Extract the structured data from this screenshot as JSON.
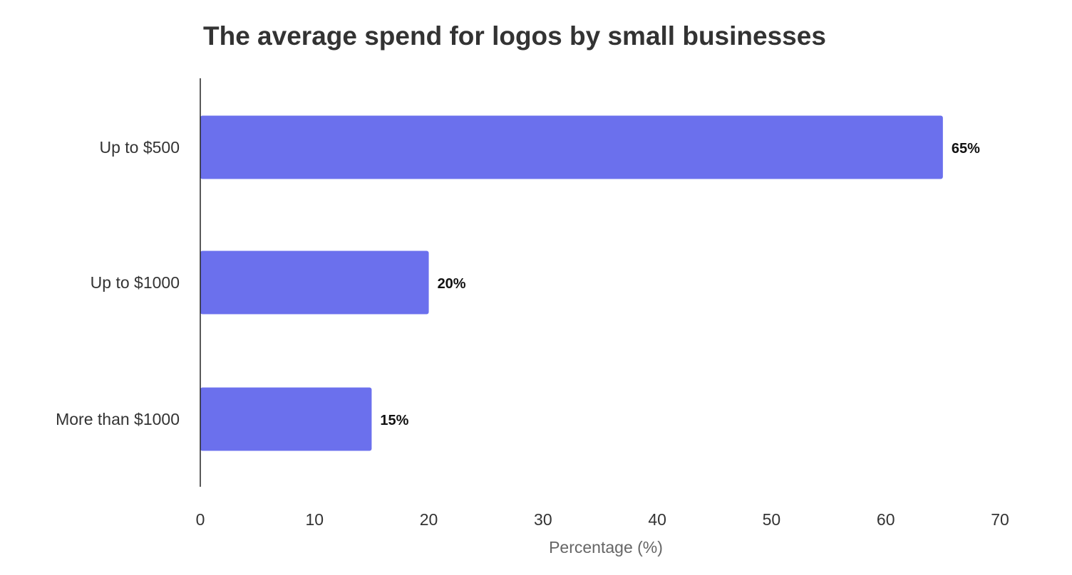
{
  "chart_data": {
    "type": "bar",
    "orientation": "horizontal",
    "title": "The average spend for logos by small businesses",
    "categories": [
      "Up to $500",
      "Up to $1000",
      "More than $1000"
    ],
    "values": [
      65,
      20,
      15
    ],
    "data_labels": [
      "65%",
      "20%",
      "15%"
    ],
    "xlabel": "Percentage (%)",
    "ylabel": "",
    "xlim": [
      0,
      70
    ],
    "xticks": [
      0,
      10,
      20,
      30,
      40,
      50,
      60,
      70
    ],
    "grid": false,
    "legend": "none",
    "bar_color": "#6b70ed",
    "axis_color": "#222222"
  }
}
